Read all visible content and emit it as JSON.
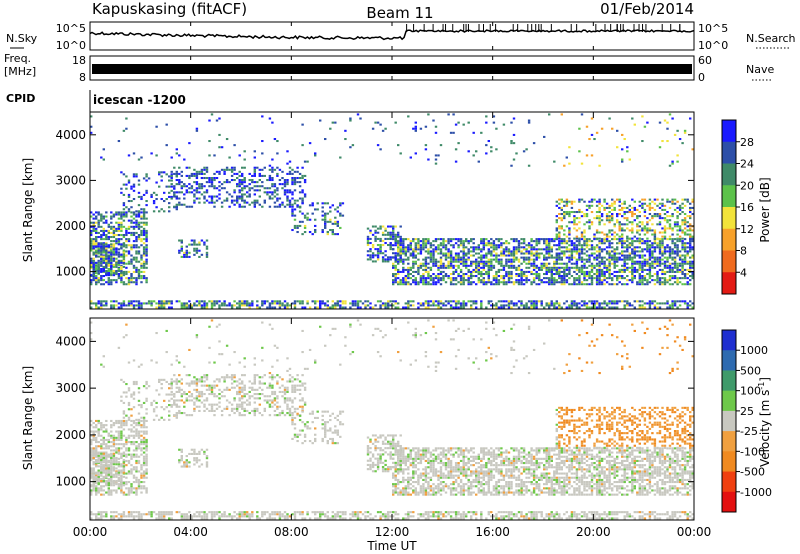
{
  "header": {
    "station": "Kapuskasing (fitACF)",
    "beam": "Beam 11",
    "date": "01/Feb/2014"
  },
  "chart_data": [
    {
      "type": "line",
      "name_panel": "noise",
      "left_label": "N.Sky",
      "right_label": "N.Search",
      "yticks_left": [
        "10^5",
        "10^0"
      ],
      "yticks_right": [
        "10^5",
        "10^0"
      ],
      "note": ""
    },
    {
      "type": "line",
      "left_label": "Freq.",
      "left_unit": "[MHz]",
      "right_label": "Nave",
      "yticks_left": [
        "18",
        "8"
      ],
      "yticks_right": [
        "60",
        "0"
      ]
    },
    {
      "type": "table",
      "cpid_label": "CPID",
      "program": "icescan  -1200"
    },
    {
      "type": "heatmap",
      "name_panel": "power",
      "ylabel": "Slant Range [km]",
      "ylim": [
        180,
        4500
      ],
      "yticks": [
        1000,
        2000,
        3000,
        4000
      ],
      "colorbar": {
        "label": "Power [dB]",
        "ticks": [
          "4",
          "8",
          "12",
          "16",
          "20",
          "24",
          "28"
        ],
        "colors": [
          "#1a1aff",
          "#2d4fa8",
          "#3f8a68",
          "#5cc24a",
          "#f2e33a",
          "#f7a12a",
          "#f06b1e",
          "#e31b14"
        ]
      }
    },
    {
      "type": "heatmap",
      "name_panel": "velocity",
      "ylabel": "Slant Range [km]",
      "ylim": [
        180,
        4500
      ],
      "yticks": [
        1000,
        2000,
        3000,
        4000
      ],
      "colorbar": {
        "label": "Velocity [m s",
        "label_sup": "-1",
        "label_end": "]",
        "ticks": [
          "1000",
          "500",
          "100",
          "25",
          "-25",
          "-100",
          "-500",
          "-1000"
        ],
        "colors": [
          "#1f2fd0",
          "#2e6bb0",
          "#3f9a6a",
          "#6ec84a",
          "#c8c8c0",
          "#f0a040",
          "#f08a20",
          "#f04010",
          "#e31010"
        ]
      }
    }
  ],
  "time_axis": {
    "label": "Time UT",
    "ticks": [
      "00:00",
      "04:00",
      "08:00",
      "12:00",
      "16:00",
      "20:00",
      "00:00"
    ]
  }
}
